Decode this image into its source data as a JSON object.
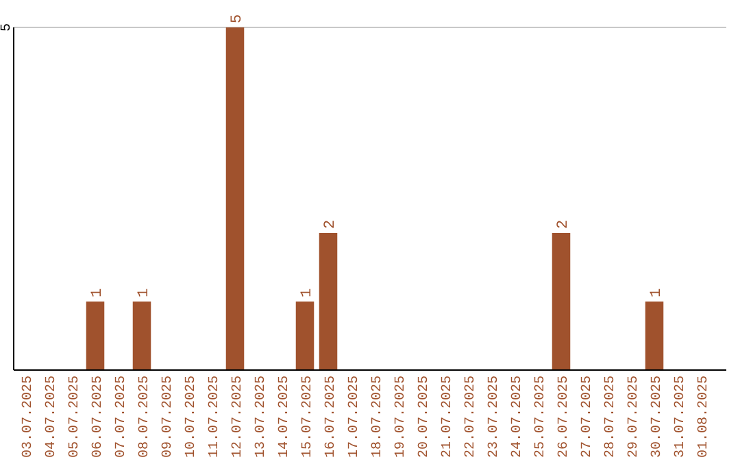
{
  "chart_data": {
    "type": "bar",
    "categories": [
      "03.07.2025",
      "04.07.2025",
      "05.07.2025",
      "06.07.2025",
      "07.07.2025",
      "08.07.2025",
      "09.07.2025",
      "10.07.2025",
      "11.07.2025",
      "12.07.2025",
      "13.07.2025",
      "14.07.2025",
      "15.07.2025",
      "16.07.2025",
      "17.07.2025",
      "18.07.2025",
      "19.07.2025",
      "20.07.2025",
      "21.07.2025",
      "22.07.2025",
      "23.07.2025",
      "24.07.2025",
      "25.07.2025",
      "26.07.2025",
      "27.07.2025",
      "28.07.2025",
      "29.07.2025",
      "30.07.2025",
      "31.07.2025",
      "01.08.2025"
    ],
    "values": [
      0,
      0,
      0,
      1,
      0,
      1,
      0,
      0,
      0,
      5,
      0,
      0,
      1,
      2,
      0,
      0,
      0,
      0,
      0,
      0,
      0,
      0,
      0,
      2,
      0,
      0,
      0,
      1,
      0,
      0
    ],
    "value_labels": [
      null,
      null,
      null,
      "1",
      null,
      "1",
      null,
      null,
      null,
      "5",
      null,
      null,
      "1",
      "2",
      null,
      null,
      null,
      null,
      null,
      null,
      null,
      null,
      null,
      "2",
      null,
      null,
      null,
      "1",
      null,
      null
    ],
    "color": "#a0522d",
    "ylim": [
      0,
      5
    ],
    "yticks": [
      5
    ],
    "ref_lines": [
      {
        "axis": "y",
        "value": 5,
        "color": "#c8c8c8"
      }
    ]
  }
}
